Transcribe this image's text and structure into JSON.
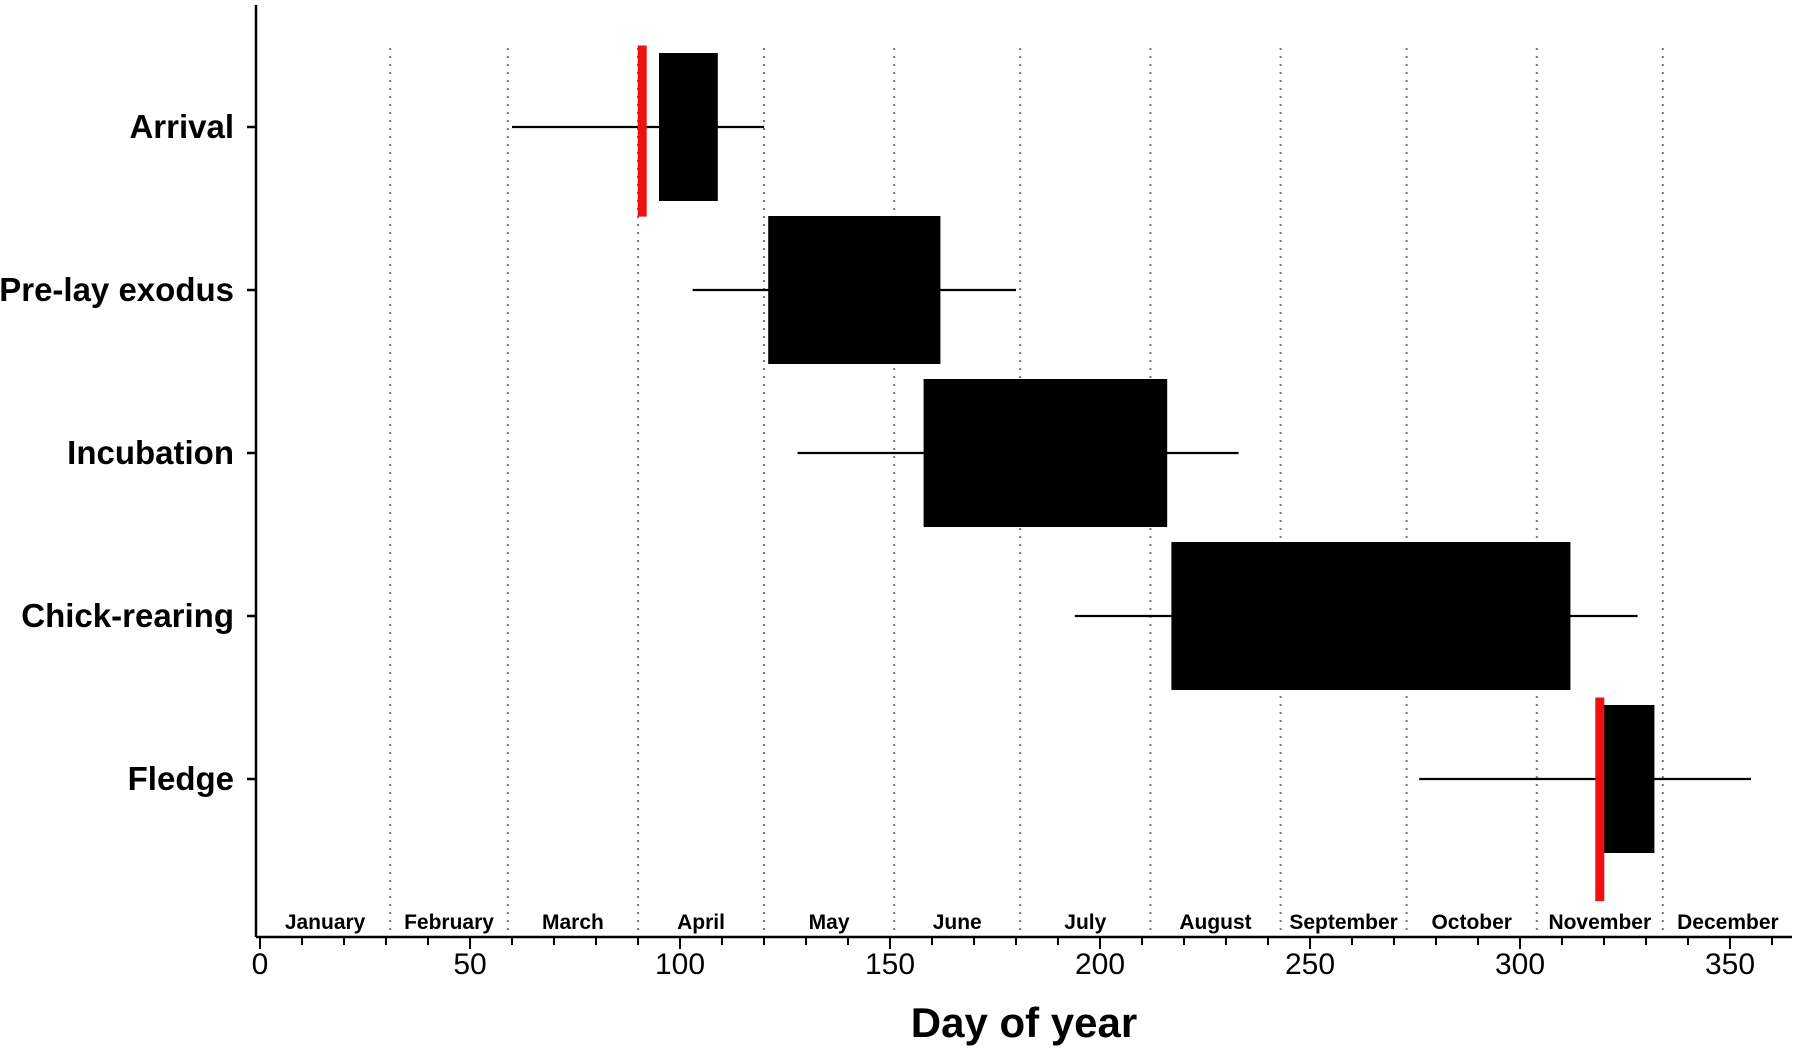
{
  "chart_data": {
    "type": "bar",
    "subtype": "range-boxplot",
    "xlabel": "Day of year",
    "ylabel": "",
    "xlim": [
      0,
      365
    ],
    "x_ticks": [
      0,
      50,
      100,
      150,
      200,
      250,
      300,
      350
    ],
    "x_tick_labels": [
      "0",
      "50",
      "100",
      "150",
      "200",
      "250",
      "300",
      "350"
    ],
    "categories": [
      "Arrival",
      "Pre-lay exodus",
      "Incubation",
      "Chick-rearing",
      "Fledge"
    ],
    "ranges": [
      {
        "name": "Arrival",
        "whisker_min": 60,
        "box_start": 95,
        "box_end": 109,
        "whisker_max": 120
      },
      {
        "name": "Pre-lay exodus",
        "whisker_min": 103,
        "box_start": 121,
        "box_end": 162,
        "whisker_max": 180
      },
      {
        "name": "Incubation",
        "whisker_min": 128,
        "box_start": 158,
        "box_end": 216,
        "whisker_max": 233
      },
      {
        "name": "Chick-rearing",
        "whisker_min": 194,
        "box_start": 217,
        "box_end": 312,
        "whisker_max": 328
      },
      {
        "name": "Fledge",
        "whisker_min": 276,
        "box_start": 320,
        "box_end": 332,
        "whisker_max": 355
      }
    ],
    "markers": [
      {
        "x": 91,
        "y_from": -0.5,
        "y_to": 0.55,
        "color": "#ee1111"
      },
      {
        "x": 319,
        "y_from": 3.5,
        "y_to": 4.75,
        "color": "#ee1111"
      }
    ],
    "month_boundaries": [
      31,
      59,
      90,
      120,
      151,
      181,
      212,
      243,
      273,
      304,
      334
    ],
    "months": [
      "January",
      "February",
      "March",
      "April",
      "May",
      "June",
      "July",
      "August",
      "September",
      "October",
      "November",
      "December"
    ],
    "grid": "vertical dotted at month boundaries",
    "legend": "none",
    "colors": {
      "box": "#000000",
      "marker": "#ee1111"
    }
  }
}
